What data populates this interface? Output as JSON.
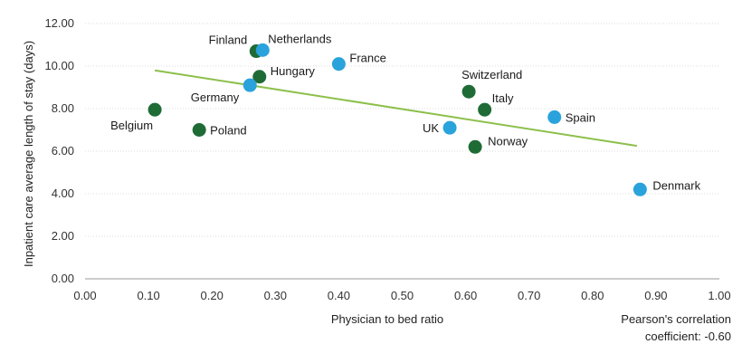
{
  "chart_data": {
    "type": "scatter",
    "xlabel": "Physician to bed ratio",
    "ylabel": "Inpatient care average length of stay (days)",
    "xlim": [
      0,
      1
    ],
    "ylim": [
      0,
      12
    ],
    "x_ticks": [
      "0.00",
      "0.10",
      "0.20",
      "0.30",
      "0.40",
      "0.50",
      "0.60",
      "0.70",
      "0.80",
      "0.90",
      "1.00"
    ],
    "y_ticks": [
      "0.00",
      "2.00",
      "4.00",
      "6.00",
      "8.00",
      "10.00",
      "12.00"
    ],
    "grid": "horizontal",
    "annotation_line1": "Pearson's correlation",
    "annotation_line2": "coefficient: -0.60",
    "colors": {
      "dark": "#1f6b35",
      "light": "#2aa3dc",
      "trend": "#8cc04b"
    },
    "trendline": {
      "x": [
        0.11,
        0.87
      ],
      "y": [
        9.8,
        6.25
      ]
    },
    "points": [
      {
        "label": "Finland",
        "x": 0.27,
        "y": 10.7,
        "color": "dark"
      },
      {
        "label": "Netherlands",
        "x": 0.28,
        "y": 10.75,
        "color": "light"
      },
      {
        "label": "France",
        "x": 0.4,
        "y": 10.1,
        "color": "light"
      },
      {
        "label": "Hungary",
        "x": 0.275,
        "y": 9.5,
        "color": "dark"
      },
      {
        "label": "Germany",
        "x": 0.26,
        "y": 9.1,
        "color": "light"
      },
      {
        "label": "Belgium",
        "x": 0.11,
        "y": 7.95,
        "color": "dark"
      },
      {
        "label": "Poland",
        "x": 0.18,
        "y": 7.0,
        "color": "dark"
      },
      {
        "label": "Switzerland",
        "x": 0.605,
        "y": 8.8,
        "color": "dark"
      },
      {
        "label": "Italy",
        "x": 0.63,
        "y": 7.95,
        "color": "dark"
      },
      {
        "label": "UK",
        "x": 0.575,
        "y": 7.1,
        "color": "light"
      },
      {
        "label": "Norway",
        "x": 0.615,
        "y": 6.2,
        "color": "dark"
      },
      {
        "label": "Spain",
        "x": 0.74,
        "y": 7.6,
        "color": "light"
      },
      {
        "label": "Denmark",
        "x": 0.875,
        "y": 4.2,
        "color": "light"
      }
    ]
  }
}
